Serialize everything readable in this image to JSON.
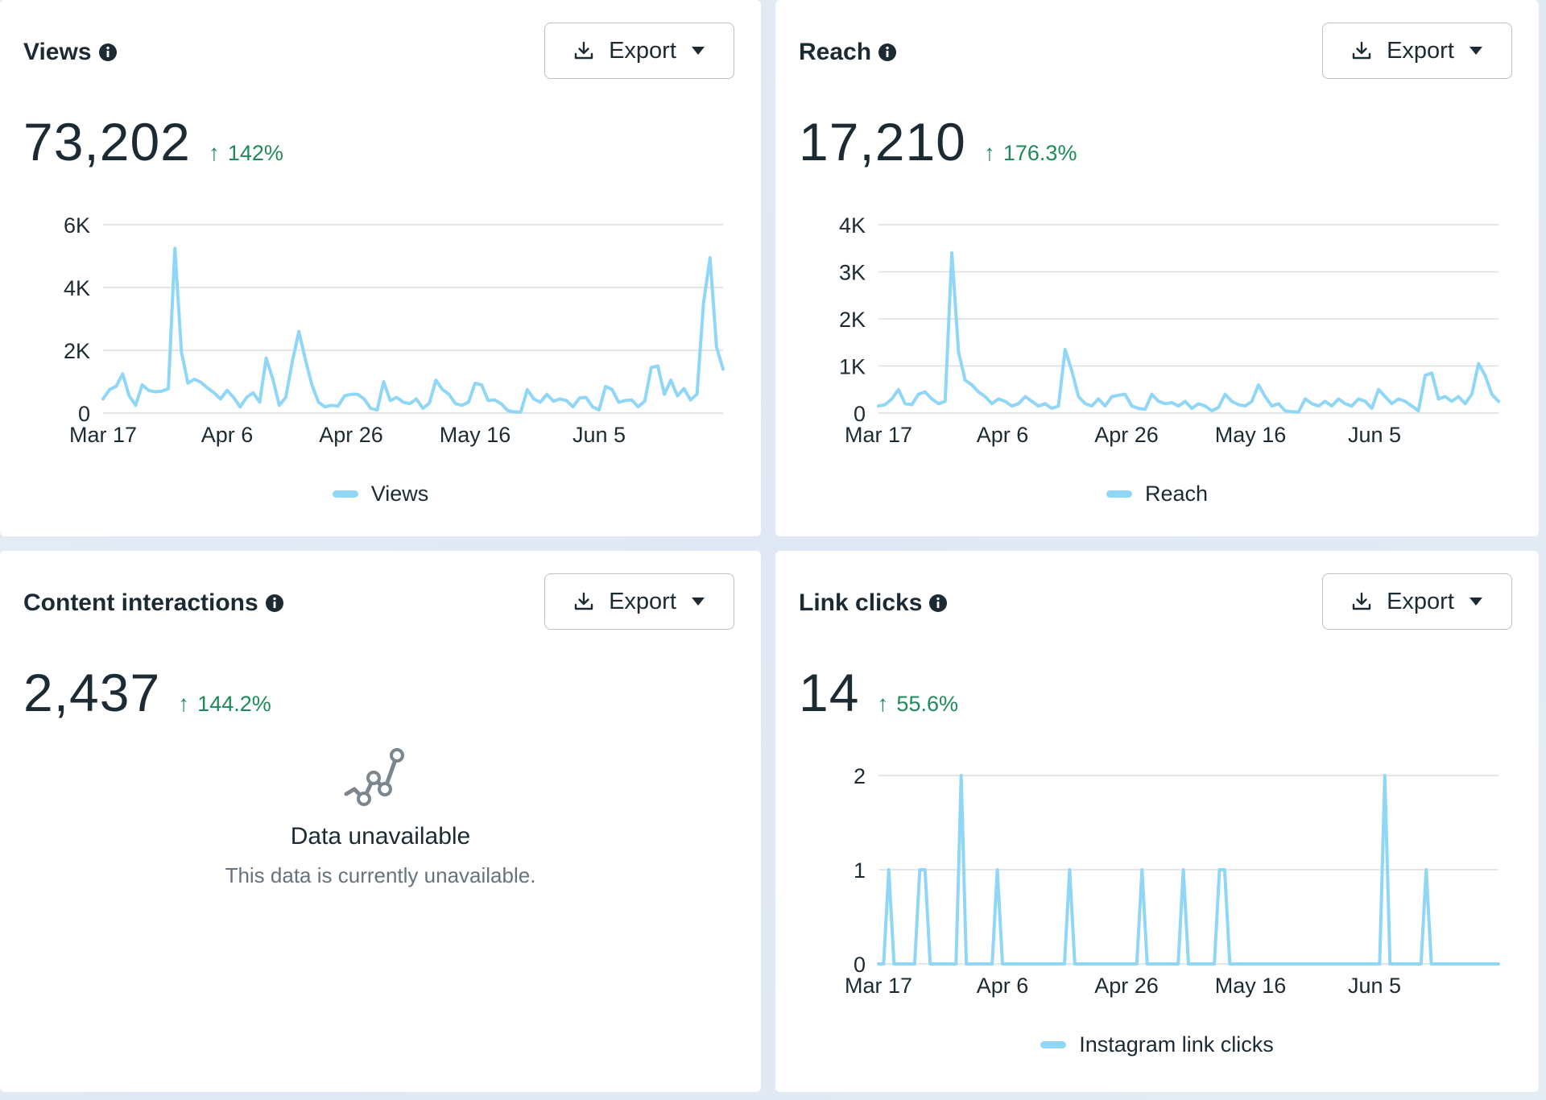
{
  "cards": [
    {
      "title": "Views",
      "export_label": "Export",
      "value": "73,202",
      "delta": "142%",
      "legend": "Views"
    },
    {
      "title": "Reach",
      "export_label": "Export",
      "value": "17,210",
      "delta": "176.3%",
      "legend": "Reach"
    },
    {
      "title": "Content interactions",
      "export_label": "Export",
      "value": "2,437",
      "delta": "144.2%",
      "empty_title": "Data unavailable",
      "empty_subtitle": "This data is currently unavailable."
    },
    {
      "title": "Link clicks",
      "export_label": "Export",
      "value": "14",
      "delta": "55.6%",
      "legend": "Instagram link clicks"
    }
  ],
  "colors": {
    "line": "#8fd6f7",
    "positive": "#1e8a5a",
    "grid": "#dadde1",
    "text": "#1c2b33"
  },
  "chart_data": [
    {
      "type": "line",
      "title": "Views",
      "x_tick_labels": [
        "Mar 17",
        "Apr 6",
        "Apr 26",
        "May 16",
        "Jun 5"
      ],
      "x_tick_index": [
        0,
        20,
        40,
        60,
        80
      ],
      "y_tick_labels": [
        "0",
        "2K",
        "4K",
        "6K"
      ],
      "ylim": [
        0,
        6000
      ],
      "grid": true,
      "legend": "bottom-center",
      "series": [
        {
          "name": "Views",
          "values": [
            450,
            750,
            850,
            1250,
            550,
            250,
            900,
            720,
            680,
            700,
            780,
            5250,
            1950,
            950,
            1080,
            980,
            800,
            650,
            450,
            720,
            500,
            200,
            500,
            650,
            350,
            1750,
            1100,
            250,
            500,
            1650,
            2600,
            1700,
            900,
            350,
            200,
            250,
            220,
            550,
            600,
            600,
            450,
            150,
            100,
            1000,
            400,
            500,
            350,
            300,
            450,
            150,
            320,
            1050,
            750,
            600,
            300,
            250,
            350,
            950,
            900,
            400,
            420,
            300,
            80,
            40,
            30,
            750,
            450,
            350,
            600,
            380,
            450,
            400,
            200,
            480,
            500,
            200,
            100,
            850,
            750,
            350,
            400,
            420,
            200,
            380,
            1450,
            1500,
            600,
            1050,
            550,
            780,
            420,
            600,
            3500,
            4950,
            2100,
            1400
          ]
        }
      ]
    },
    {
      "type": "line",
      "title": "Reach",
      "x_tick_labels": [
        "Mar 17",
        "Apr 6",
        "Apr 26",
        "May 16",
        "Jun 5"
      ],
      "x_tick_index": [
        0,
        20,
        40,
        60,
        80
      ],
      "y_tick_labels": [
        "0",
        "1K",
        "2K",
        "3K",
        "4K"
      ],
      "ylim": [
        0,
        4000
      ],
      "grid": true,
      "legend": "bottom-center",
      "series": [
        {
          "name": "Reach",
          "values": [
            150,
            180,
            300,
            500,
            200,
            180,
            400,
            450,
            300,
            200,
            250,
            3400,
            1300,
            700,
            600,
            450,
            350,
            200,
            300,
            250,
            150,
            200,
            350,
            250,
            150,
            200,
            100,
            150,
            1350,
            900,
            350,
            200,
            150,
            300,
            150,
            350,
            380,
            400,
            150,
            100,
            80,
            400,
            250,
            200,
            220,
            150,
            250,
            100,
            200,
            150,
            50,
            120,
            400,
            250,
            180,
            150,
            250,
            600,
            350,
            150,
            200,
            50,
            30,
            20,
            300,
            200,
            150,
            250,
            150,
            300,
            200,
            150,
            300,
            250,
            100,
            500,
            350,
            200,
            300,
            250,
            150,
            50,
            800,
            850,
            300,
            350,
            250,
            350,
            200,
            400,
            1050,
            800,
            400,
            250
          ]
        }
      ]
    },
    {
      "type": "line",
      "title": "Link clicks",
      "x_tick_labels": [
        "Mar 17",
        "Apr 6",
        "Apr 26",
        "May 16",
        "Jun 5"
      ],
      "x_tick_index": [
        0,
        20,
        40,
        60,
        80
      ],
      "y_tick_labels": [
        "0",
        "1",
        "2"
      ],
      "ylim": [
        0,
        2
      ],
      "grid": true,
      "legend": "bottom-center",
      "series": [
        {
          "name": "Instagram link clicks",
          "values": [
            0,
            0,
            1,
            0,
            0,
            0,
            0,
            0,
            1,
            1,
            0,
            0,
            0,
            0,
            0,
            0,
            2,
            0,
            0,
            0,
            0,
            0,
            0,
            1,
            0,
            0,
            0,
            0,
            0,
            0,
            0,
            0,
            0,
            0,
            0,
            0,
            0,
            1,
            0,
            0,
            0,
            0,
            0,
            0,
            0,
            0,
            0,
            0,
            0,
            0,
            0,
            1,
            0,
            0,
            0,
            0,
            0,
            0,
            0,
            1,
            0,
            0,
            0,
            0,
            0,
            0,
            1,
            1,
            0,
            0,
            0,
            0,
            0,
            0,
            0,
            0,
            0,
            0,
            0,
            0,
            0,
            0,
            0,
            0,
            0,
            0,
            0,
            0,
            0,
            0,
            0,
            0,
            0,
            0,
            0,
            0,
            0,
            0,
            2,
            0,
            0,
            0,
            0,
            0,
            0,
            0,
            1,
            0,
            0,
            0,
            0,
            0,
            0,
            0,
            0,
            0,
            0,
            0,
            0,
            0,
            0
          ]
        }
      ]
    }
  ]
}
